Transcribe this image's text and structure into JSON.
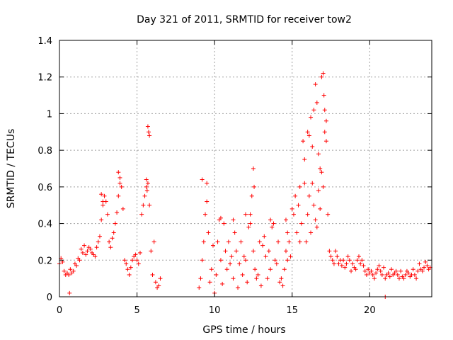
{
  "chart_data": {
    "type": "scatter",
    "title": "Day 321 of 2011, SRMTID for receiver tow2",
    "xlabel": "GPS time / hours",
    "ylabel": "SRMTID / TECUs",
    "xlim": [
      0,
      24
    ],
    "ylim": [
      0,
      1.4
    ],
    "xticks": [
      "0",
      "5",
      "10",
      "15",
      "20"
    ],
    "yticks": [
      "0",
      "0.2",
      "0.4",
      "0.6",
      "0.8",
      "1",
      "1.2",
      "1.4"
    ],
    "grid": true,
    "marker": "+",
    "color": "#ff0000",
    "series": [
      {
        "name": "SRMTID",
        "x": [
          0.0,
          0.1,
          0.2,
          0.3,
          0.4,
          0.5,
          0.6,
          0.7,
          0.8,
          0.9,
          1.0,
          1.1,
          1.2,
          1.3,
          1.4,
          1.5,
          1.6,
          1.7,
          1.8,
          1.9,
          2.0,
          2.1,
          2.2,
          2.3,
          2.4,
          2.5,
          2.6,
          2.7,
          2.8,
          2.9,
          3.0,
          3.1,
          3.2,
          3.3,
          3.4,
          3.5,
          3.6,
          3.7,
          3.8,
          3.9,
          4.0,
          4.1,
          4.2,
          4.3,
          4.4,
          4.5,
          4.6,
          4.7,
          4.8,
          4.9,
          5.0,
          5.1,
          5.2,
          5.3,
          5.4,
          5.5,
          5.6,
          5.7,
          5.8,
          5.9,
          6.0,
          6.1,
          6.2,
          6.3,
          6.4,
          6.5,
          9.0,
          9.1,
          9.2,
          9.3,
          9.4,
          9.5,
          9.6,
          9.7,
          9.8,
          9.9,
          10.0,
          10.1,
          10.2,
          10.3,
          10.4,
          10.5,
          10.6,
          10.7,
          10.8,
          10.9,
          11.0,
          11.1,
          11.2,
          11.3,
          11.4,
          11.5,
          11.6,
          11.7,
          11.8,
          11.9,
          12.0,
          12.1,
          12.2,
          12.3,
          12.4,
          12.5,
          12.6,
          12.7,
          12.8,
          12.9,
          13.0,
          13.1,
          13.2,
          13.3,
          13.4,
          13.5,
          13.6,
          13.7,
          13.8,
          13.9,
          14.0,
          14.1,
          14.2,
          14.3,
          14.4,
          14.5,
          14.6,
          14.7,
          14.8,
          14.9,
          15.0,
          15.1,
          15.2,
          15.3,
          15.4,
          15.5,
          15.6,
          15.7,
          15.8,
          15.9,
          16.0,
          16.1,
          16.2,
          16.3,
          16.4,
          16.5,
          16.6,
          16.7,
          16.8,
          16.9,
          17.0,
          17.1,
          17.2,
          17.3,
          17.4,
          17.5,
          17.6,
          17.7,
          17.8,
          17.9,
          18.0,
          18.1,
          18.2,
          18.3,
          18.4,
          18.5,
          18.6,
          18.7,
          18.8,
          18.9,
          19.0,
          19.1,
          19.2,
          19.3,
          19.4,
          19.5,
          19.6,
          19.7,
          19.8,
          19.9,
          20.0,
          20.1,
          20.2,
          20.3,
          20.4,
          20.5,
          20.6,
          20.7,
          20.8,
          20.9,
          21.0,
          21.1,
          21.2,
          21.3,
          21.4,
          21.5,
          21.6,
          21.7,
          21.8,
          21.9,
          22.0,
          22.1,
          22.2,
          22.3,
          22.4,
          22.5,
          22.6,
          22.7,
          22.8,
          22.9,
          23.0,
          23.1,
          23.2,
          23.3,
          23.4,
          23.5,
          23.6,
          23.7,
          23.8,
          23.9,
          0.65,
          5.7,
          5.75,
          5.8,
          2.7,
          2.8,
          3.8,
          3.9,
          5.6,
          5.65,
          9.2,
          12.5,
          12.55,
          15.5,
          16.2,
          16.4,
          16.5,
          16.6,
          16.9,
          17.0,
          17.05,
          17.1,
          17.2,
          16.0,
          16.1,
          16.3,
          16.7,
          16.8,
          15.8,
          10.4,
          11.2,
          12.0,
          12.3,
          13.6,
          14.6,
          14.7,
          9.5,
          21.0
        ],
        "y": [
          0.18,
          0.21,
          0.19,
          0.14,
          0.12,
          0.13,
          0.12,
          0.15,
          0.13,
          0.14,
          0.18,
          0.17,
          0.21,
          0.2,
          0.26,
          0.24,
          0.28,
          0.23,
          0.25,
          0.27,
          0.26,
          0.24,
          0.23,
          0.22,
          0.27,
          0.3,
          0.33,
          0.42,
          0.5,
          0.55,
          0.52,
          0.45,
          0.3,
          0.27,
          0.32,
          0.35,
          0.4,
          0.46,
          0.55,
          0.65,
          0.6,
          0.48,
          0.2,
          0.18,
          0.15,
          0.12,
          0.16,
          0.2,
          0.22,
          0.23,
          0.2,
          0.18,
          0.24,
          0.45,
          0.5,
          0.55,
          0.6,
          0.62,
          0.5,
          0.25,
          0.12,
          0.3,
          0.08,
          0.05,
          0.06,
          0.1,
          0.05,
          0.1,
          0.2,
          0.3,
          0.45,
          0.62,
          0.35,
          0.08,
          0.15,
          0.28,
          0.02,
          0.12,
          0.3,
          0.42,
          0.2,
          0.07,
          0.4,
          0.25,
          0.15,
          0.3,
          0.18,
          0.22,
          0.1,
          0.35,
          0.25,
          0.05,
          0.18,
          0.3,
          0.12,
          0.22,
          0.2,
          0.08,
          0.38,
          0.45,
          0.55,
          0.25,
          0.15,
          0.1,
          0.12,
          0.3,
          0.06,
          0.28,
          0.33,
          0.22,
          0.1,
          0.25,
          0.15,
          0.38,
          0.4,
          0.2,
          0.18,
          0.3,
          0.08,
          0.1,
          0.06,
          0.15,
          0.25,
          0.2,
          0.3,
          0.22,
          0.48,
          0.45,
          0.55,
          0.35,
          0.5,
          0.3,
          0.4,
          0.85,
          0.75,
          0.3,
          0.45,
          0.55,
          0.35,
          0.62,
          0.5,
          0.42,
          0.38,
          0.58,
          0.48,
          0.68,
          0.6,
          0.9,
          0.85,
          0.45,
          0.25,
          0.22,
          0.2,
          0.18,
          0.25,
          0.22,
          0.18,
          0.2,
          0.17,
          0.2,
          0.16,
          0.18,
          0.22,
          0.2,
          0.14,
          0.18,
          0.16,
          0.15,
          0.2,
          0.22,
          0.18,
          0.2,
          0.17,
          0.14,
          0.12,
          0.15,
          0.13,
          0.14,
          0.12,
          0.1,
          0.13,
          0.15,
          0.17,
          0.14,
          0.12,
          0.16,
          0.1,
          0.12,
          0.13,
          0.11,
          0.15,
          0.12,
          0.13,
          0.14,
          0.12,
          0.1,
          0.14,
          0.11,
          0.1,
          0.12,
          0.14,
          0.13,
          0.11,
          0.12,
          0.15,
          0.12,
          0.1,
          0.14,
          0.18,
          0.15,
          0.14,
          0.16,
          0.19,
          0.17,
          0.15,
          0.16,
          0.02,
          0.93,
          0.9,
          0.88,
          0.56,
          0.52,
          0.68,
          0.62,
          0.64,
          0.58,
          0.64,
          0.7,
          0.6,
          0.6,
          0.98,
          1.02,
          1.16,
          1.06,
          1.2,
          1.22,
          1.1,
          1.02,
          0.96,
          0.9,
          0.88,
          0.82,
          0.78,
          0.7,
          0.62,
          0.43,
          0.42,
          0.45,
          0.4,
          0.42,
          0.42,
          0.35,
          0.52,
          0.0
        ]
      }
    ]
  }
}
